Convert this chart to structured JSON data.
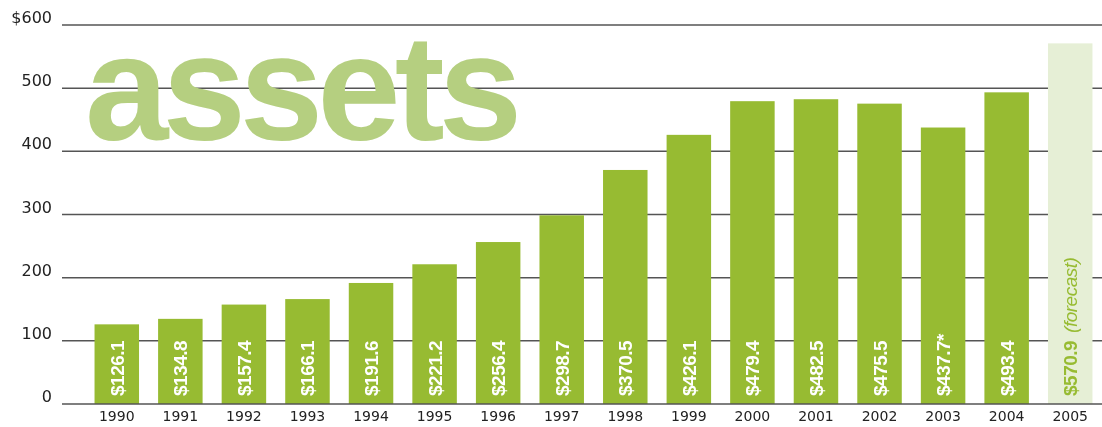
{
  "chart_data": {
    "type": "bar",
    "title": "assets",
    "categories": [
      "1990",
      "1991",
      "1992",
      "1993",
      "1994",
      "1995",
      "1996",
      "1997",
      "1998",
      "1999",
      "2000",
      "2001",
      "2002",
      "2003",
      "2004",
      "2005"
    ],
    "values": [
      126.1,
      134.8,
      157.4,
      166.1,
      191.6,
      221.2,
      256.4,
      298.7,
      370.5,
      426.1,
      479.4,
      482.5,
      475.5,
      437.7,
      493.4,
      570.9
    ],
    "colors": [
      "#97bb32",
      "#97bb32",
      "#97bb32",
      "#97bb32",
      "#97bb32",
      "#97bb32",
      "#97bb32",
      "#97bb32",
      "#97bb32",
      "#97bb32",
      "#97bb32",
      "#97bb32",
      "#97bb32",
      "#97bb32",
      "#97bb32",
      "#e6efd6"
    ],
    "value_labels": [
      "$126.1",
      "$134.8",
      "$157.4",
      "$166.1",
      "$191.6",
      "$221.2",
      "$256.4",
      "$298.7",
      "$370.5",
      "$426.1",
      "$479.4",
      "$482.5",
      "$475.5",
      "$437.7*",
      "$493.4",
      "$570.9"
    ],
    "annotations": [
      "(forecast)"
    ],
    "ylim": [
      0,
      600
    ],
    "yticks": [
      {
        "value": 0,
        "label": "0"
      },
      {
        "value": 100,
        "label": "100"
      },
      {
        "value": 200,
        "label": "200"
      },
      {
        "value": 300,
        "label": "300"
      },
      {
        "value": 400,
        "label": "400"
      },
      {
        "value": 500,
        "label": "500"
      },
      {
        "value": 600,
        "label": "$600"
      }
    ],
    "grid": "y"
  }
}
